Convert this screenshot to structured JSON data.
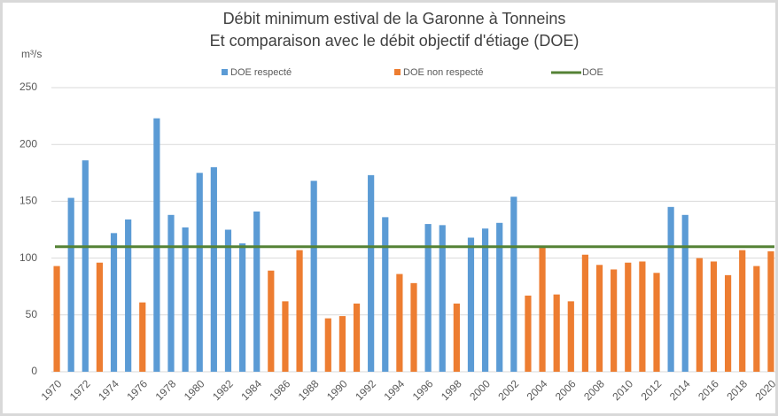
{
  "chart_data": {
    "type": "bar",
    "title": "Débit minimum estival de la Garonne à Tonneins",
    "subtitle": "Et comparaison avec le débit objectif d'étiage (DOE)",
    "y_label": "m³/s",
    "categories": [
      "1970",
      null,
      "1972",
      null,
      "1974",
      null,
      "1976",
      null,
      "1978",
      null,
      "1980",
      null,
      "1982",
      null,
      "1984",
      null,
      "1986",
      null,
      "1988",
      null,
      "1990",
      null,
      "1992",
      null,
      "1994",
      null,
      "1996",
      null,
      "1998",
      null,
      "2000",
      null,
      "2002",
      null,
      "2004",
      null,
      "2006",
      null,
      "2008",
      null,
      "2010",
      null,
      "2012",
      null,
      "2014",
      null,
      "2016",
      null,
      "2018",
      null,
      "2020"
    ],
    "series": [
      {
        "name": "DOE respecté",
        "color": "#5b9bd5",
        "values": [
          null,
          153,
          186,
          null,
          122,
          134,
          null,
          223,
          138,
          127,
          175,
          180,
          125,
          113,
          141,
          null,
          null,
          null,
          168,
          null,
          null,
          null,
          173,
          136,
          null,
          null,
          130,
          129,
          null,
          118,
          126,
          131,
          154,
          null,
          null,
          null,
          null,
          null,
          null,
          null,
          null,
          null,
          null,
          145,
          138,
          null,
          null,
          null,
          null,
          null,
          null
        ]
      },
      {
        "name": "DOE non respecté",
        "color": "#ed7d31",
        "values": [
          93,
          null,
          null,
          96,
          null,
          null,
          61,
          null,
          null,
          null,
          null,
          null,
          null,
          null,
          null,
          89,
          62,
          107,
          null,
          47,
          49,
          60,
          null,
          null,
          86,
          78,
          null,
          null,
          60,
          null,
          null,
          null,
          null,
          67,
          109,
          68,
          62,
          103,
          94,
          90,
          96,
          97,
          87,
          null,
          null,
          100,
          97,
          85,
          107,
          93,
          106
        ]
      }
    ],
    "doe": {
      "name": "DOE",
      "value": 110,
      "color": "#548235"
    },
    "ylim": [
      0,
      250
    ],
    "yticks": [
      0,
      50,
      100,
      150,
      200,
      250
    ],
    "grid": true
  }
}
